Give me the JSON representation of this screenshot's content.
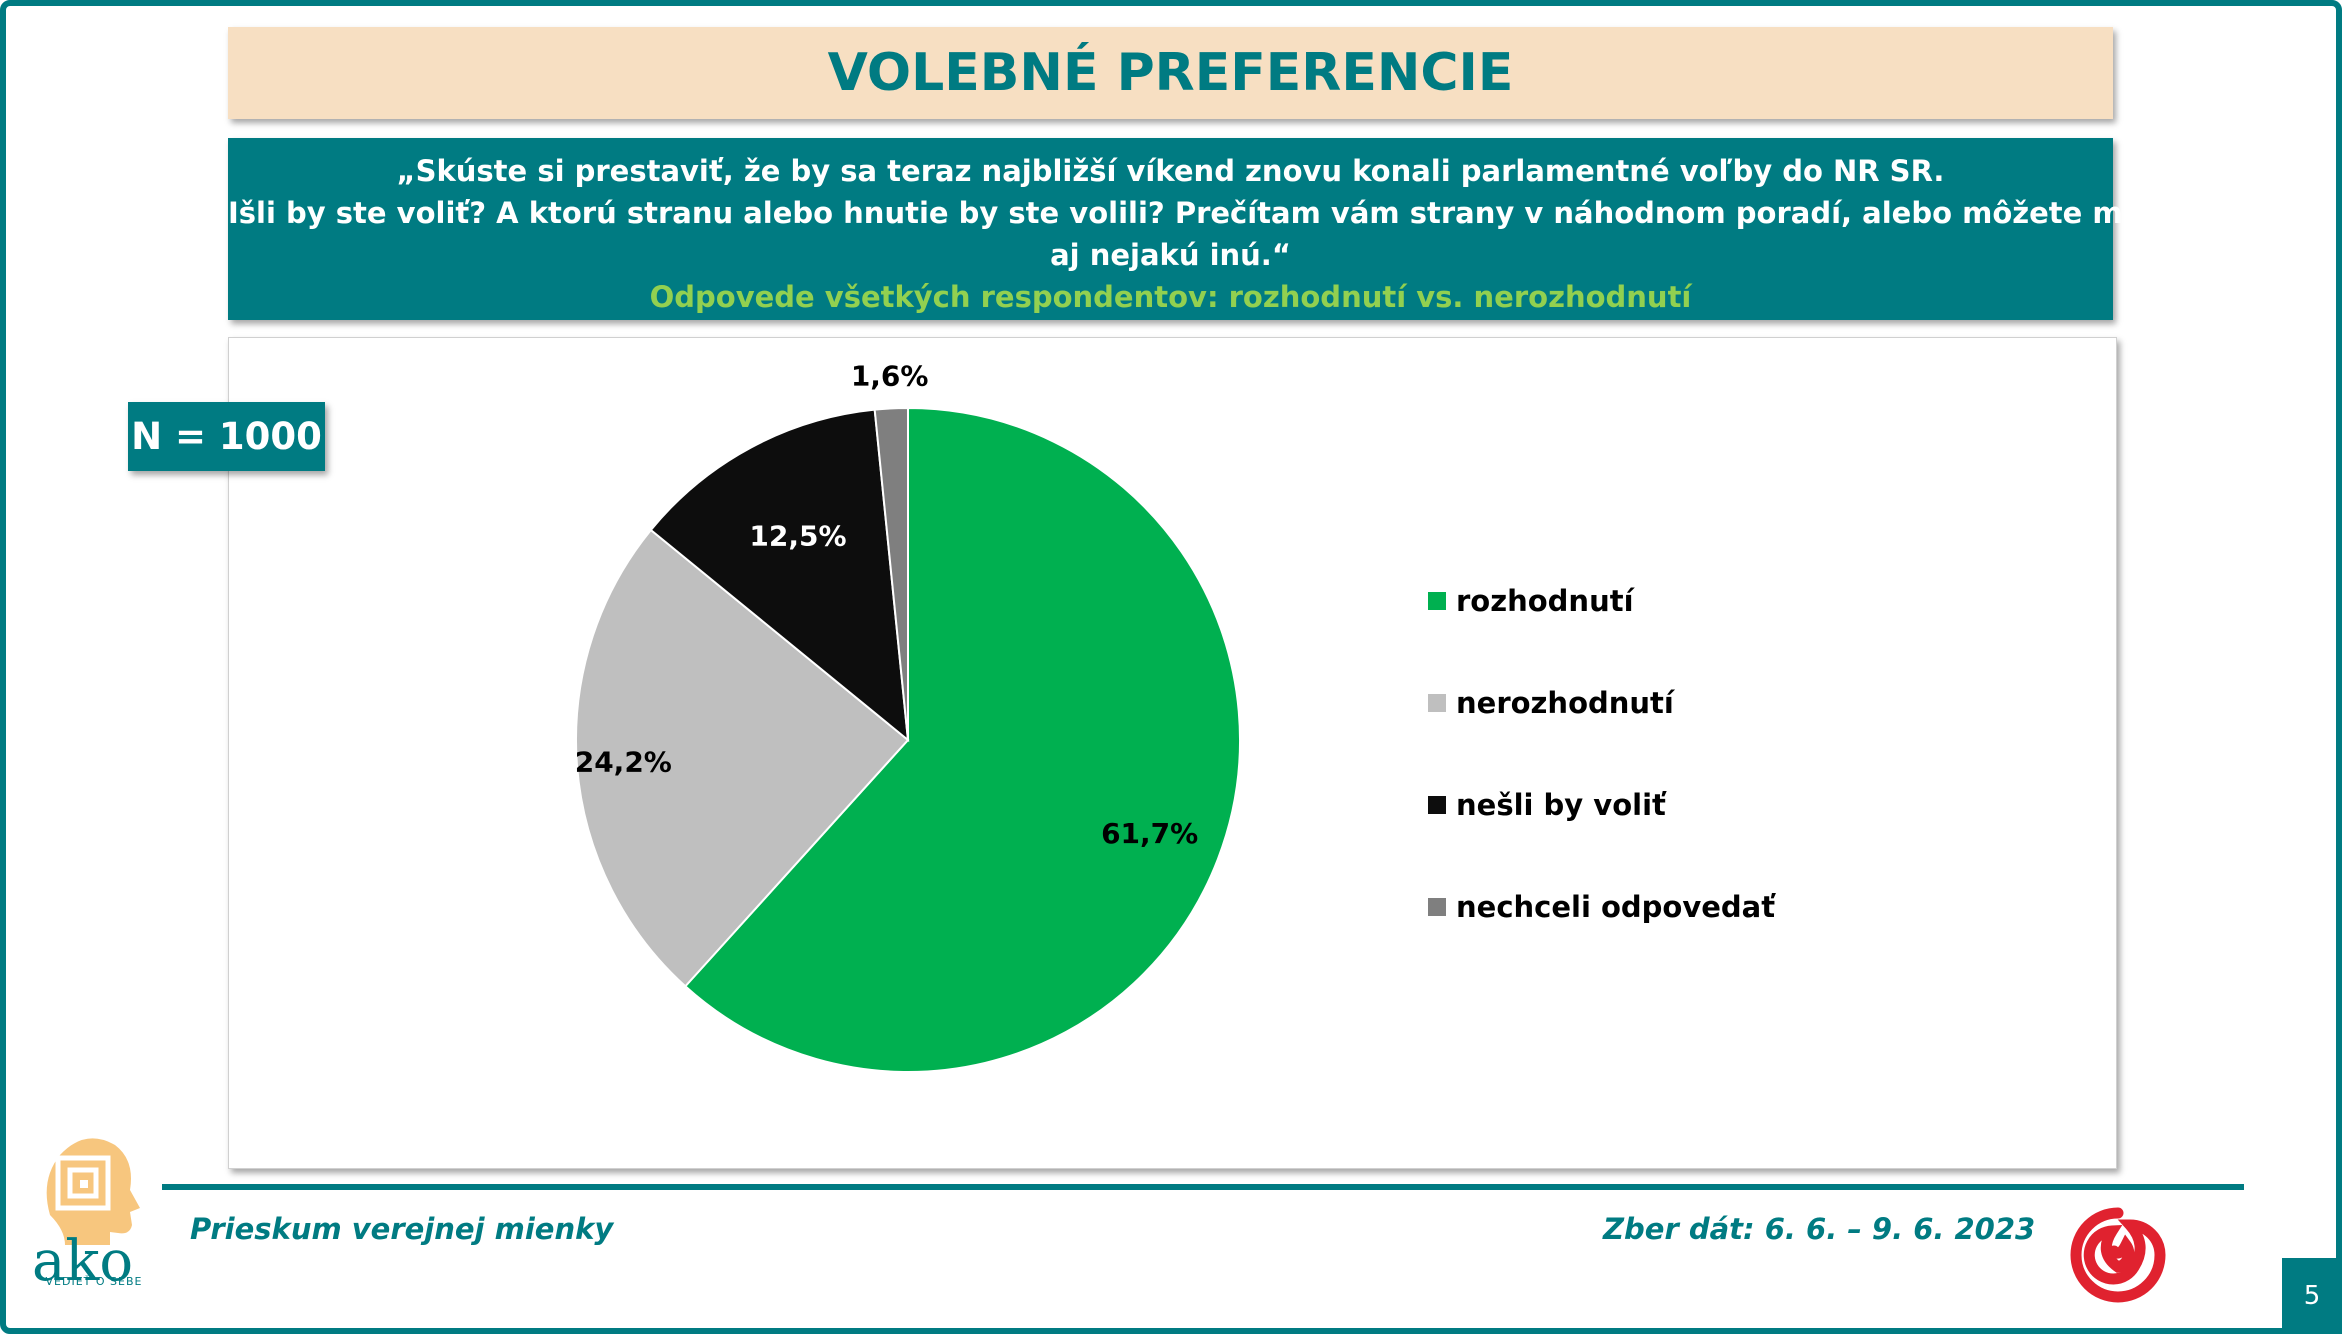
{
  "title": "VOLEBNÉ PREFERENCIE",
  "question": {
    "line1": "„Skúste si prestaviť, že by sa teraz najbližší víkend znovu konali parlamentné voľby do NR SR.",
    "line2": "Išli by ste voliť? A ktorú stranu alebo hnutie by ste volili? Prečítam vám strany v náhodnom poradí, alebo môžete menovať",
    "line3": "aj nejakú inú.“",
    "subtitle": "Odpovede všetkých respondentov: rozhodnutí vs. nerozhodnutí"
  },
  "sample": "N = 1000",
  "chart_data": {
    "type": "pie",
    "start": "12 o'clock, clockwise",
    "slices": [
      {
        "name": "rozhodnutí",
        "value": 61.7,
        "label": "61,7%",
        "color": "#00b050",
        "label_color": "#000000"
      },
      {
        "name": "nerozhodnutí",
        "value": 24.2,
        "label": "24,2%",
        "color": "#bfbfbf",
        "label_color": "#000000"
      },
      {
        "name": "nešli by voliť",
        "value": 12.5,
        "label": "12,5%",
        "color": "#0d0d0d",
        "label_color": "#ffffff"
      },
      {
        "name": "nechceli odpovedať",
        "value": 1.6,
        "label": "1,6%",
        "color": "#7f7f7f",
        "label_color": "#000000"
      }
    ],
    "legend_position": "right"
  },
  "footer": {
    "left": "Prieskum verejnej mienky",
    "right": "Zber dát: 6. 6. – 9. 6. 2023",
    "page": "5"
  },
  "logo": {
    "text": "ako",
    "tagline": "VEDIEŤ O SEBE",
    "color": "#007b82",
    "head_color": "#f7c67e",
    "swirl_color": "#e0222f"
  }
}
